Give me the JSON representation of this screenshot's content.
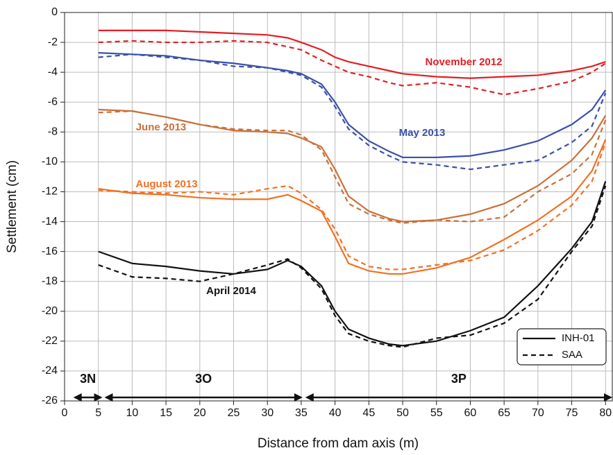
{
  "chart_data": {
    "type": "line",
    "xlabel": "Distance from dam axis (m)",
    "ylabel": "Settlement (cm)",
    "xlim": [
      0,
      81
    ],
    "ylim": [
      -26,
      0
    ],
    "xticks": [
      0,
      5,
      10,
      15,
      20,
      25,
      30,
      35,
      40,
      45,
      50,
      55,
      60,
      65,
      70,
      75,
      80
    ],
    "yticks": [
      -26,
      -24,
      -22,
      -20,
      -18,
      -16,
      -14,
      -12,
      -10,
      -8,
      -6,
      -4,
      -2,
      0
    ],
    "grid": true,
    "legend": "lower right",
    "methods": [
      {
        "name": "INH-01",
        "dash": false
      },
      {
        "name": "SAA",
        "dash": true
      }
    ],
    "x": [
      5,
      10,
      15,
      20,
      25,
      30,
      33,
      35,
      38,
      40,
      42,
      45,
      48,
      50,
      55,
      60,
      65,
      70,
      75,
      78,
      80
    ],
    "series": [
      {
        "name": "November 2012",
        "color": "#e31e24",
        "lines": [
          {
            "method": 0,
            "values": [
              -1.2,
              -1.2,
              -1.2,
              -1.3,
              -1.4,
              -1.5,
              -1.7,
              -2.0,
              -2.5,
              -3.0,
              -3.3,
              -3.6,
              -3.9,
              -4.1,
              -4.3,
              -4.4,
              -4.3,
              -4.2,
              -3.9,
              -3.6,
              -3.3
            ]
          },
          {
            "method": 1,
            "values": [
              -2.0,
              -1.9,
              -2.0,
              -2.0,
              -1.9,
              -2.0,
              -2.3,
              -2.5,
              -3.2,
              -3.6,
              -4.0,
              -4.3,
              -4.7,
              -4.9,
              -4.7,
              -5.0,
              -5.5,
              -5.1,
              -4.6,
              -4.0,
              -3.4
            ]
          }
        ]
      },
      {
        "name": "May 2013",
        "color": "#3a50a8",
        "lines": [
          {
            "method": 0,
            "values": [
              -2.7,
              -2.8,
              -2.9,
              -3.2,
              -3.4,
              -3.7,
              -3.9,
              -4.1,
              -4.8,
              -6.0,
              -7.5,
              -8.6,
              -9.3,
              -9.7,
              -9.7,
              -9.6,
              -9.2,
              -8.6,
              -7.5,
              -6.5,
              -5.2
            ]
          },
          {
            "method": 1,
            "values": [
              -3.0,
              -2.8,
              -3.0,
              -3.2,
              -3.6,
              -3.7,
              -4.0,
              -4.2,
              -5.0,
              -6.3,
              -7.8,
              -8.9,
              -9.6,
              -10.0,
              -10.2,
              -10.5,
              -10.2,
              -9.9,
              -8.7,
              -7.6,
              -5.4
            ]
          }
        ]
      },
      {
        "name": "June 2013",
        "color": "#c8703a",
        "lines": [
          {
            "method": 0,
            "values": [
              -6.5,
              -6.6,
              -7.0,
              -7.5,
              -7.9,
              -8.0,
              -8.1,
              -8.4,
              -9.0,
              -10.5,
              -12.3,
              -13.3,
              -13.8,
              -14.0,
              -13.9,
              -13.5,
              -12.8,
              -11.6,
              -9.9,
              -8.4,
              -6.9
            ]
          },
          {
            "method": 1,
            "values": [
              -6.7,
              -6.6,
              -7.0,
              -7.5,
              -7.8,
              -7.9,
              -7.9,
              -8.2,
              -9.2,
              -11.0,
              -12.8,
              -13.5,
              -13.9,
              -14.1,
              -13.9,
              -14.0,
              -13.7,
              -12.0,
              -10.8,
              -9.5,
              -7.2
            ]
          }
        ]
      },
      {
        "name": "August 2013",
        "color": "#f37021",
        "lines": [
          {
            "method": 0,
            "values": [
              -11.8,
              -12.1,
              -12.2,
              -12.4,
              -12.5,
              -12.5,
              -12.2,
              -12.6,
              -13.3,
              -15.0,
              -16.8,
              -17.3,
              -17.5,
              -17.5,
              -17.1,
              -16.4,
              -15.2,
              -13.9,
              -12.3,
              -10.6,
              -8.5
            ]
          },
          {
            "method": 1,
            "values": [
              -11.9,
              -12.0,
              -12.1,
              -12.0,
              -12.2,
              -11.8,
              -11.6,
              -12.1,
              -13.2,
              -14.5,
              -16.3,
              -17.0,
              -17.2,
              -17.2,
              -16.9,
              -16.6,
              -15.9,
              -14.6,
              -12.9,
              -11.3,
              -8.7
            ]
          }
        ]
      },
      {
        "name": "April 2014",
        "color": "#111111",
        "lines": [
          {
            "method": 0,
            "values": [
              -16.0,
              -16.8,
              -17.0,
              -17.3,
              -17.5,
              -17.2,
              -16.6,
              -17.0,
              -18.3,
              -20.0,
              -21.2,
              -21.8,
              -22.2,
              -22.3,
              -22.0,
              -21.3,
              -20.4,
              -18.3,
              -15.8,
              -14.0,
              -11.3
            ]
          },
          {
            "method": 1,
            "values": [
              -16.9,
              -17.7,
              -17.8,
              -18.0,
              -17.5,
              -16.9,
              -16.5,
              -17.1,
              -18.5,
              -20.3,
              -21.5,
              -22.0,
              -22.3,
              -22.4,
              -21.8,
              -21.6,
              -20.8,
              -19.2,
              -16.0,
              -14.3,
              -11.6
            ]
          }
        ]
      }
    ],
    "zones": [
      {
        "label": "3N",
        "range": [
          1.3,
          5.6
        ]
      },
      {
        "label": "3O",
        "range": [
          5.9,
          35.2
        ]
      },
      {
        "label": "3P",
        "range": [
          35.6,
          81
        ]
      }
    ]
  }
}
